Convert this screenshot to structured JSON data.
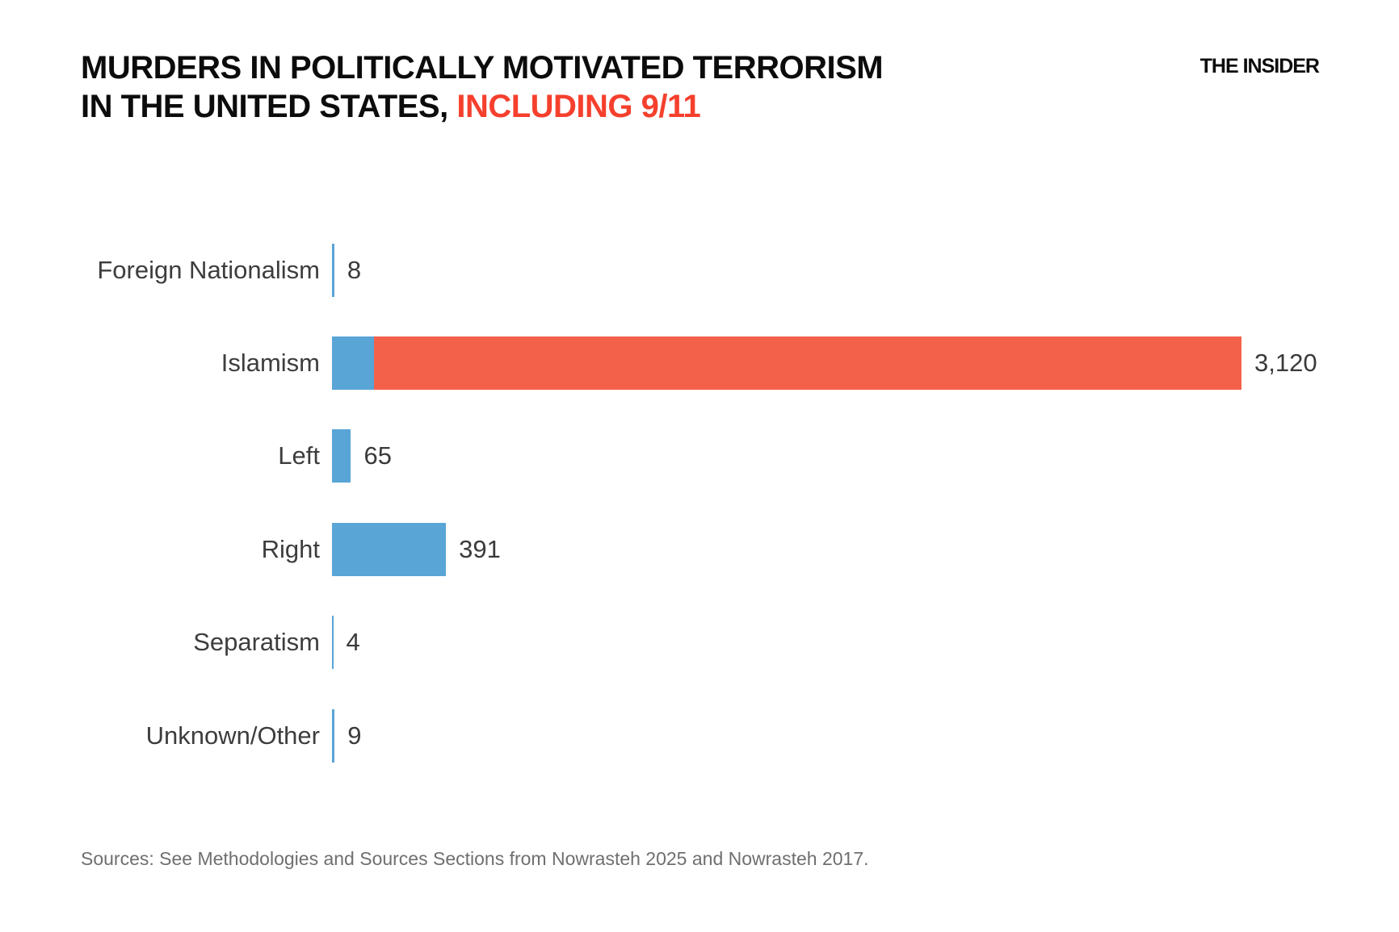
{
  "brand": {
    "name": "THE INSIDER"
  },
  "header": {
    "title_line1": "MURDERS IN POLITICALLY MOTIVATED TERRORISM",
    "title_line2_black": "IN THE UNITED STATES,",
    "title_line2_red": "INCLUDING 9/11"
  },
  "chart_data": {
    "type": "bar",
    "orientation": "horizontal",
    "title": "Murders in politically motivated terrorism in the United States, including 9/11",
    "categories": [
      "Foreign Nationalism",
      "Islamism",
      "Left",
      "Right",
      "Separatism",
      "Unknown/Other"
    ],
    "values": [
      8,
      3120,
      65,
      391,
      4,
      9
    ],
    "value_labels": [
      "8",
      "3,120",
      "65",
      "391",
      "4",
      "9"
    ],
    "xlim": [
      0,
      3120
    ],
    "grid": false,
    "legend": "none",
    "bar_colors": {
      "default_blue": "#58a5d6",
      "islamism_911_red": "#f4614b"
    },
    "islamism_segments": {
      "note": "Islamism bar is split: small blue segment then red remainder; split estimated from bar pixel widths",
      "blue_excluding_911_estimate": 143,
      "red_911_portion_estimate": 2977
    }
  },
  "footer": {
    "source": "Sources: See Methodologies and Sources Sections from Nowrasteh 2025 and Nowrasteh 2017."
  },
  "colors": {
    "title_red": "#f5402d",
    "bar_blue": "#58a5d6",
    "bar_red": "#f4614b",
    "label_gray": "#3d3d3d",
    "source_gray": "#6f6f6f",
    "background": "#ffffff"
  }
}
